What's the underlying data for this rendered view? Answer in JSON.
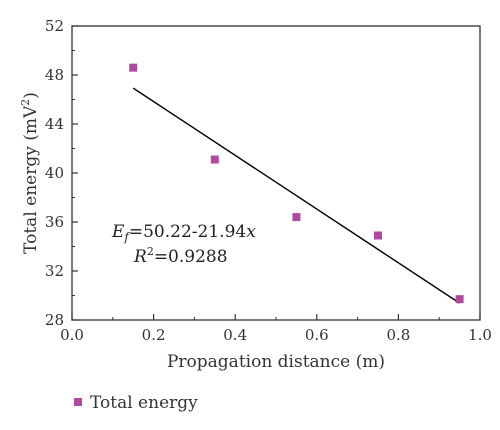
{
  "chart_data": {
    "type": "scatter",
    "xlabel": "Propagation distance (m)",
    "ylabel_prefix": "Total energy (mV",
    "ylabel_sup": "2",
    "ylabel_suffix": ")",
    "xlim": [
      0.0,
      1.0
    ],
    "ylim": [
      28,
      52
    ],
    "x_ticks": [
      0.0,
      0.2,
      0.4,
      0.6,
      0.8,
      1.0
    ],
    "x_tick_labels": [
      "0.0",
      "0.2",
      "0.4",
      "0.6",
      "0.8",
      "1.0"
    ],
    "y_ticks": [
      28,
      32,
      36,
      40,
      44,
      48,
      52
    ],
    "y_tick_labels": [
      "28",
      "32",
      "36",
      "40",
      "44",
      "48",
      "52"
    ],
    "grid": false,
    "series": [
      {
        "name": "Total energy",
        "color": "#b04a9c",
        "marker": "square",
        "points": [
          {
            "x": 0.15,
            "y": 48.6
          },
          {
            "x": 0.35,
            "y": 41.1
          },
          {
            "x": 0.55,
            "y": 36.4
          },
          {
            "x": 0.75,
            "y": 34.9
          },
          {
            "x": 0.95,
            "y": 29.7
          }
        ]
      }
    ],
    "fit_line": {
      "x_start": 0.15,
      "x_end": 0.95,
      "intercept": 50.22,
      "slope": -21.94,
      "color": "#000000"
    },
    "annotation": {
      "eq_var": "E",
      "eq_sub": "f",
      "eq_mid": "=50.22-21.94",
      "eq_x": "x",
      "r2_prefix": "R",
      "r2_sup": "2",
      "r2_value": "=0.9288"
    },
    "legend": {
      "placement": "bottom-left",
      "label": "Total energy"
    }
  }
}
